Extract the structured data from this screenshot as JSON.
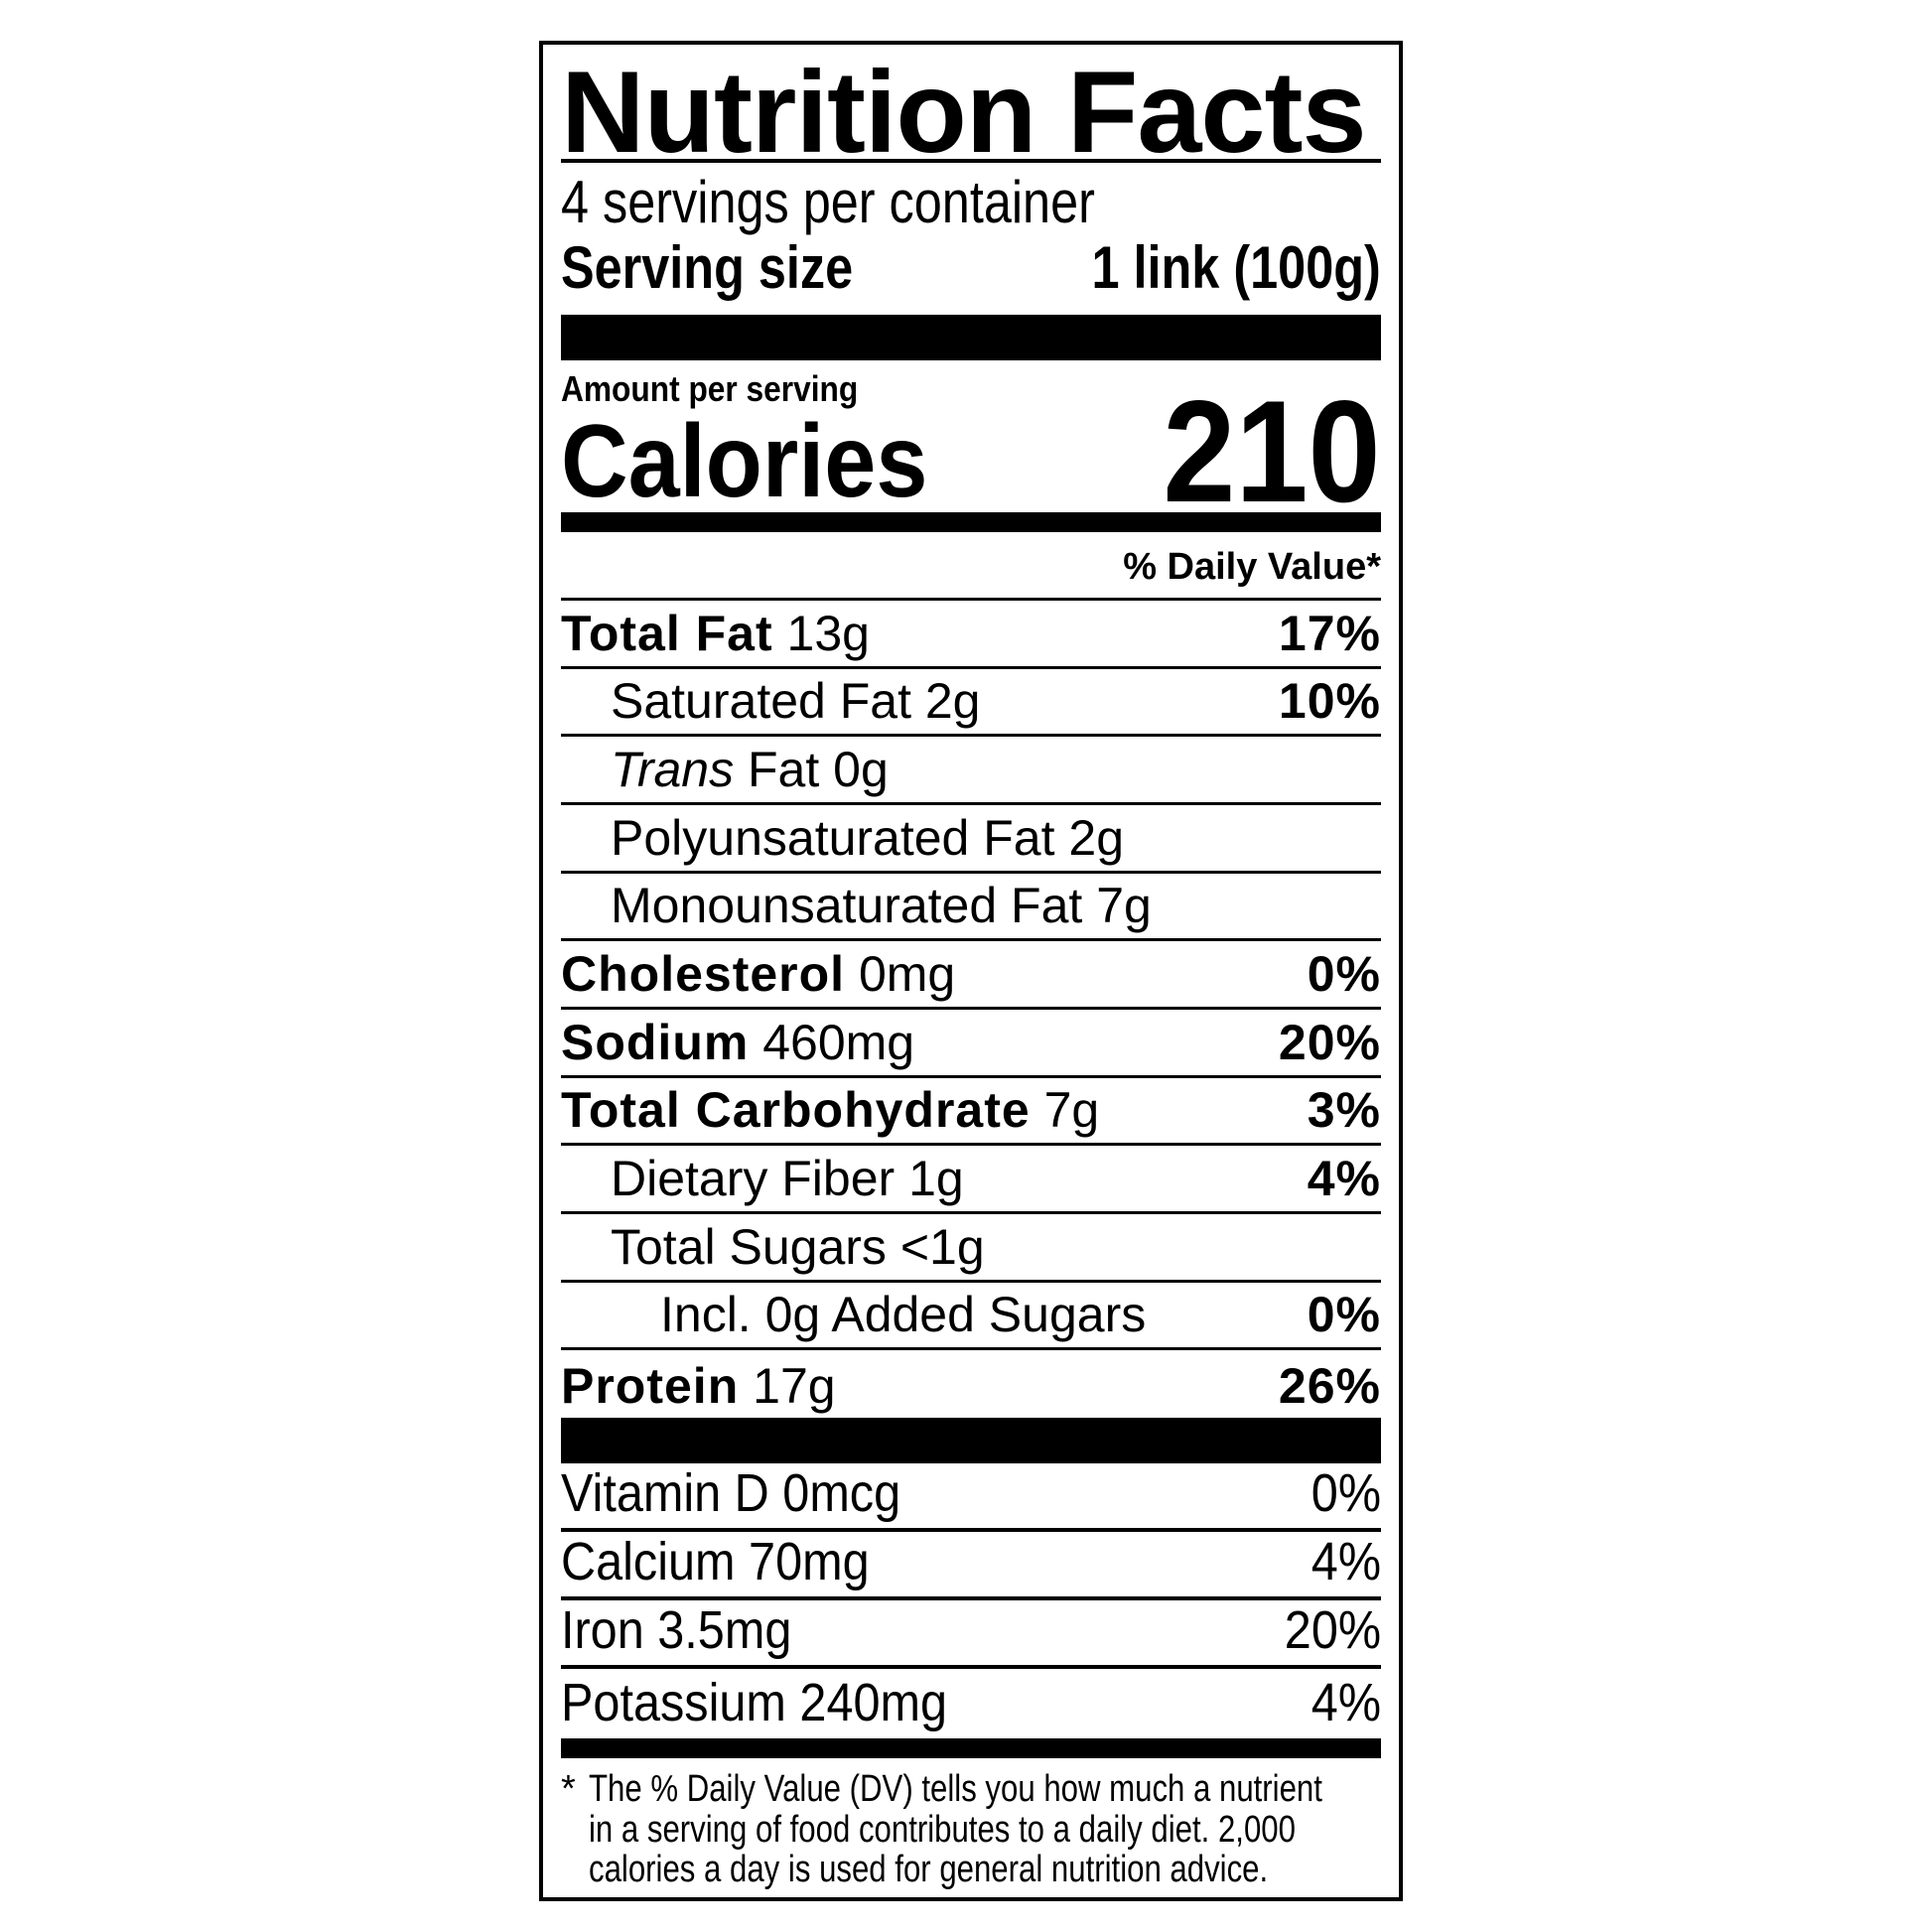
{
  "label": {
    "title": "Nutrition Facts",
    "servings_per_container": "4 servings per container",
    "serving_size_label": "Serving size",
    "serving_size_value": "1 link (100g)",
    "amount_per_serving": "Amount per serving",
    "calories_label": "Calories",
    "calories_value": "210",
    "daily_value_header": "% Daily Value*",
    "nutrients": [
      {
        "name": "Total Fat",
        "amount": "13g",
        "dv": "17%",
        "bold": true,
        "indent": 0
      },
      {
        "name": "Saturated Fat",
        "amount": "2g",
        "dv": "10%",
        "bold": false,
        "indent": 1
      },
      {
        "name": "Trans",
        "name_suffix": "Fat",
        "amount": "0g",
        "dv": "",
        "bold": false,
        "italic_name": true,
        "indent": 1
      },
      {
        "name": "Polyunsaturated Fat",
        "amount": "2g",
        "dv": "",
        "bold": false,
        "indent": 1
      },
      {
        "name": "Monounsaturated Fat",
        "amount": "7g",
        "dv": "",
        "bold": false,
        "indent": 1
      },
      {
        "name": "Cholesterol",
        "amount": "0mg",
        "dv": "0%",
        "bold": true,
        "indent": 0
      },
      {
        "name": "Sodium",
        "amount": "460mg",
        "dv": "20%",
        "bold": true,
        "indent": 0
      },
      {
        "name": "Total Carbohydrate",
        "amount": "7g",
        "dv": "3%",
        "bold": true,
        "indent": 0
      },
      {
        "name": "Dietary Fiber",
        "amount": "1g",
        "dv": "4%",
        "bold": false,
        "indent": 1
      },
      {
        "name": "Total Sugars",
        "amount": "<1g",
        "dv": "",
        "bold": false,
        "indent": 1
      },
      {
        "name": "Incl. 0g Added Sugars",
        "amount": "",
        "dv": "0%",
        "bold": false,
        "indent": 2
      },
      {
        "name": "Protein",
        "amount": "17g",
        "dv": "26%",
        "bold": true,
        "indent": 0
      }
    ],
    "vitamins": [
      {
        "name": "Vitamin D",
        "amount": "0mcg",
        "dv": "0%"
      },
      {
        "name": "Calcium",
        "amount": "70mg",
        "dv": "4%"
      },
      {
        "name": "Iron",
        "amount": "3.5mg",
        "dv": "20%"
      },
      {
        "name": "Potassium",
        "amount": "240mg",
        "dv": "4%"
      }
    ],
    "footnote_marker": "*",
    "footnote_lines": [
      "The % Daily Value (DV) tells you how much a nutrient",
      "in a serving of food contributes to a daily diet. 2,000",
      "calories a day is used for general nutrition advice."
    ]
  }
}
